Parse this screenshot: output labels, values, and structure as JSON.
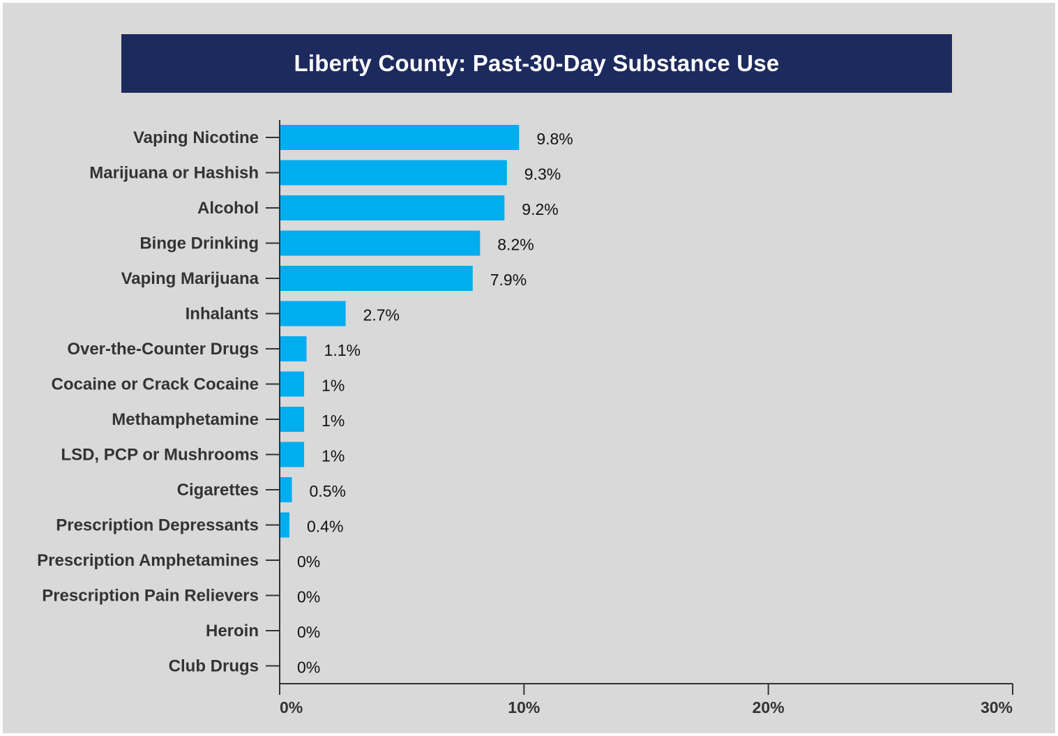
{
  "title": "Liberty County: Past-30-Day Substance Use",
  "colors": {
    "background": "#d9d9d9",
    "title_bar": "#1d2a5e",
    "bar": "#00adef",
    "axis": "#333333"
  },
  "chart_data": {
    "type": "bar",
    "orientation": "horizontal",
    "title": "Liberty County: Past-30-Day Substance Use",
    "xlabel": "",
    "ylabel": "",
    "xlim": [
      0,
      30
    ],
    "x_ticks": [
      "0%",
      "10%",
      "20%",
      "30%"
    ],
    "x_tick_values": [
      0,
      10,
      20,
      30
    ],
    "grid": false,
    "legend": "none",
    "categories": [
      "Vaping Nicotine",
      "Marijuana or Hashish",
      "Alcohol",
      "Binge Drinking",
      "Vaping Marijuana",
      "Inhalants",
      "Over-the-Counter Drugs",
      "Cocaine or Crack Cocaine",
      "Methamphetamine",
      "LSD, PCP or Mushrooms",
      "Cigarettes",
      "Prescription Depressants",
      "Prescription Amphetamines",
      "Prescription Pain Relievers",
      "Heroin",
      "Club Drugs"
    ],
    "values": [
      9.8,
      9.3,
      9.2,
      8.2,
      7.9,
      2.7,
      1.1,
      1,
      1,
      1,
      0.5,
      0.4,
      0,
      0,
      0,
      0
    ],
    "value_labels": [
      "9.8%",
      "9.3%",
      "9.2%",
      "8.2%",
      "7.9%",
      "2.7%",
      "1.1%",
      "1%",
      "1%",
      "1%",
      "0.5%",
      "0.4%",
      "0%",
      "0%",
      "0%",
      "0%"
    ]
  }
}
